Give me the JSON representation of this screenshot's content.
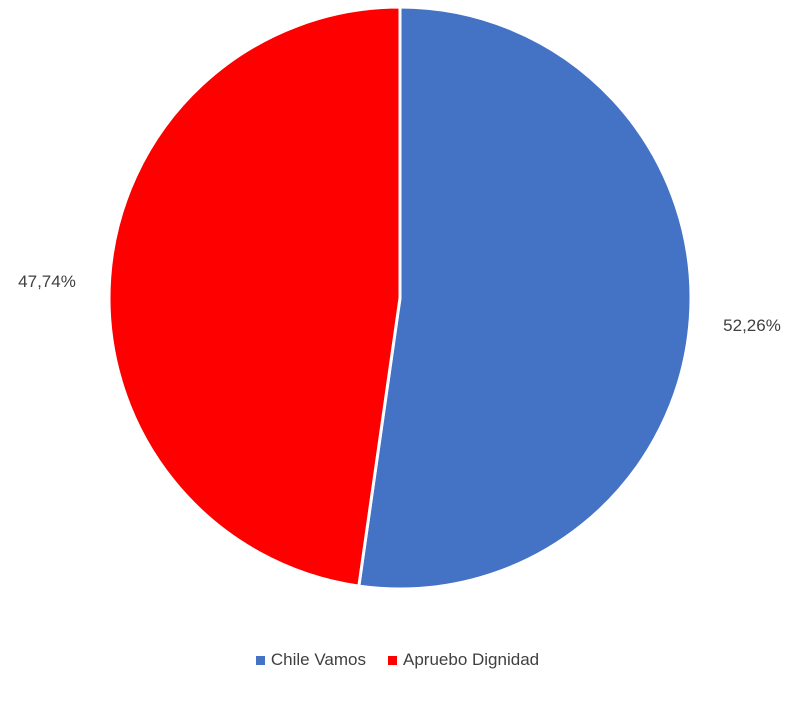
{
  "chart_data": {
    "type": "pie",
    "title": "",
    "slices": [
      {
        "label": "Chile Vamos",
        "value": 52.26,
        "display": "52,26%",
        "color": "#4472C4"
      },
      {
        "label": "Apruebo Dignidad",
        "value": 47.74,
        "display": "47,74%",
        "color": "#FF0000"
      }
    ],
    "legend_position": "bottom"
  }
}
